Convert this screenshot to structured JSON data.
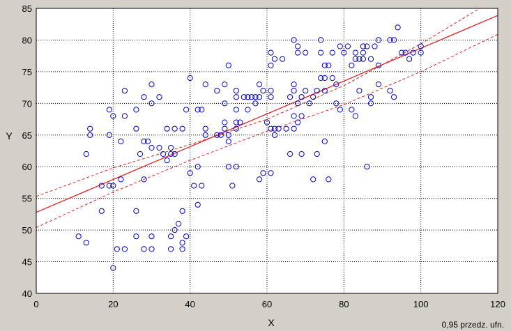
{
  "chart_data": {
    "type": "scatter",
    "title": "",
    "xlabel": "X",
    "ylabel": "Y",
    "xlim": [
      0,
      120
    ],
    "ylim": [
      40,
      85
    ],
    "xticks": [
      0,
      20,
      40,
      60,
      80,
      100,
      120
    ],
    "yticks": [
      40,
      45,
      50,
      55,
      60,
      65,
      70,
      75,
      80,
      85
    ],
    "grid": true,
    "annotation": "0,95 przedz. ufn.",
    "colors": {
      "background": "#d4d0c8",
      "plot_area": "#ffffff",
      "points": "#0000cc",
      "fit_line": "#e02020",
      "grid": "#000000"
    },
    "regression": {
      "intercept": 52.8,
      "slope": 0.259
    },
    "confidence_band": {
      "level": 0.95,
      "lower": [
        [
          0,
          50.4
        ],
        [
          20,
          56.0
        ],
        [
          40,
          61.0
        ],
        [
          60,
          65.6
        ],
        [
          80,
          69.8
        ],
        [
          100,
          75.0
        ],
        [
          120,
          80.9
        ]
      ],
      "upper": [
        [
          0,
          55.3
        ],
        [
          20,
          59.8
        ],
        [
          40,
          63.5
        ],
        [
          60,
          67.5
        ],
        [
          80,
          72.8
        ],
        [
          100,
          79.4
        ],
        [
          120,
          86.7
        ]
      ]
    },
    "series": [
      {
        "points": [
          [
            11,
            49
          ],
          [
            13,
            48
          ],
          [
            13,
            62
          ],
          [
            14,
            66
          ],
          [
            14,
            65
          ],
          [
            17,
            57
          ],
          [
            17,
            53
          ],
          [
            19,
            69
          ],
          [
            19,
            65
          ],
          [
            19,
            57
          ],
          [
            20,
            57
          ],
          [
            20,
            68
          ],
          [
            20,
            44
          ],
          [
            21,
            47
          ],
          [
            22,
            64
          ],
          [
            22,
            58
          ],
          [
            23,
            72
          ],
          [
            23,
            68
          ],
          [
            23,
            47
          ],
          [
            26,
            69
          ],
          [
            26,
            66
          ],
          [
            26,
            53
          ],
          [
            26,
            49
          ],
          [
            27,
            62
          ],
          [
            28,
            71
          ],
          [
            28,
            64
          ],
          [
            28,
            58
          ],
          [
            28,
            47
          ],
          [
            29,
            64
          ],
          [
            30,
            73
          ],
          [
            30,
            70
          ],
          [
            30,
            63
          ],
          [
            30,
            49
          ],
          [
            30,
            47
          ],
          [
            32,
            71
          ],
          [
            32,
            63
          ],
          [
            33,
            62
          ],
          [
            34,
            66
          ],
          [
            34,
            61
          ],
          [
            35,
            62
          ],
          [
            35,
            63
          ],
          [
            35,
            49
          ],
          [
            35,
            47
          ],
          [
            36,
            66
          ],
          [
            36,
            62
          ],
          [
            36,
            50
          ],
          [
            37,
            51
          ],
          [
            38,
            66
          ],
          [
            38,
            53
          ],
          [
            38,
            48
          ],
          [
            38,
            47
          ],
          [
            39,
            69
          ],
          [
            39,
            49
          ],
          [
            40,
            74
          ],
          [
            40,
            59
          ],
          [
            41,
            57
          ],
          [
            42,
            69
          ],
          [
            42,
            60
          ],
          [
            42,
            54
          ],
          [
            43,
            69
          ],
          [
            43,
            57
          ],
          [
            44,
            73
          ],
          [
            44,
            66
          ],
          [
            44,
            65
          ],
          [
            47,
            72
          ],
          [
            47,
            65
          ],
          [
            48,
            65
          ],
          [
            49,
            73
          ],
          [
            49,
            70
          ],
          [
            49,
            67
          ],
          [
            49,
            66
          ],
          [
            50,
            76
          ],
          [
            50,
            65
          ],
          [
            50,
            64
          ],
          [
            50,
            60
          ],
          [
            51,
            57
          ],
          [
            52,
            72
          ],
          [
            52,
            71
          ],
          [
            52,
            69
          ],
          [
            52,
            67
          ],
          [
            52,
            66
          ],
          [
            52,
            60
          ],
          [
            53,
            67
          ],
          [
            54,
            71
          ],
          [
            55,
            71
          ],
          [
            55,
            69
          ],
          [
            56,
            71
          ],
          [
            57,
            70
          ],
          [
            57,
            71
          ],
          [
            58,
            73
          ],
          [
            58,
            71
          ],
          [
            58,
            58
          ],
          [
            59,
            72
          ],
          [
            59,
            59
          ],
          [
            60,
            67
          ],
          [
            61,
            78
          ],
          [
            61,
            76
          ],
          [
            61,
            72
          ],
          [
            61,
            71
          ],
          [
            61,
            66
          ],
          [
            61,
            59
          ],
          [
            62,
            77
          ],
          [
            62,
            66
          ],
          [
            62,
            65
          ],
          [
            63,
            66
          ],
          [
            64,
            77
          ],
          [
            65,
            66
          ],
          [
            66,
            71
          ],
          [
            66,
            62
          ],
          [
            67,
            80
          ],
          [
            67,
            73
          ],
          [
            67,
            72
          ],
          [
            67,
            68
          ],
          [
            67,
            66
          ],
          [
            68,
            79
          ],
          [
            68,
            78
          ],
          [
            68,
            67
          ],
          [
            68,
            70
          ],
          [
            69,
            71
          ],
          [
            69,
            68
          ],
          [
            69,
            62
          ],
          [
            70,
            78
          ],
          [
            70,
            72
          ],
          [
            71,
            70
          ],
          [
            72,
            71
          ],
          [
            72,
            58
          ],
          [
            73,
            72
          ],
          [
            73,
            62
          ],
          [
            74,
            80
          ],
          [
            74,
            78
          ],
          [
            74,
            74
          ],
          [
            75,
            76
          ],
          [
            75,
            74
          ],
          [
            75,
            72
          ],
          [
            75,
            64
          ],
          [
            76,
            76
          ],
          [
            76,
            58
          ],
          [
            77,
            78
          ],
          [
            77,
            74
          ],
          [
            78,
            73
          ],
          [
            78,
            70
          ],
          [
            79,
            79
          ],
          [
            79,
            69
          ],
          [
            80,
            78
          ],
          [
            81,
            79
          ],
          [
            82,
            76
          ],
          [
            82,
            69
          ],
          [
            83,
            78
          ],
          [
            83,
            77
          ],
          [
            83,
            68
          ],
          [
            84,
            77
          ],
          [
            84,
            72
          ],
          [
            85,
            79
          ],
          [
            85,
            78
          ],
          [
            85,
            77
          ],
          [
            86,
            79
          ],
          [
            86,
            60
          ],
          [
            87,
            77
          ],
          [
            87,
            71
          ],
          [
            87,
            70
          ],
          [
            88,
            79
          ],
          [
            89,
            80
          ],
          [
            89,
            76
          ],
          [
            89,
            73
          ],
          [
            92,
            80
          ],
          [
            92,
            72
          ],
          [
            93,
            80
          ],
          [
            93,
            71
          ],
          [
            94,
            82
          ],
          [
            95,
            78
          ],
          [
            96,
            78
          ],
          [
            97,
            77
          ],
          [
            98,
            78
          ],
          [
            100,
            79
          ],
          [
            100,
            78
          ]
        ]
      }
    ]
  }
}
